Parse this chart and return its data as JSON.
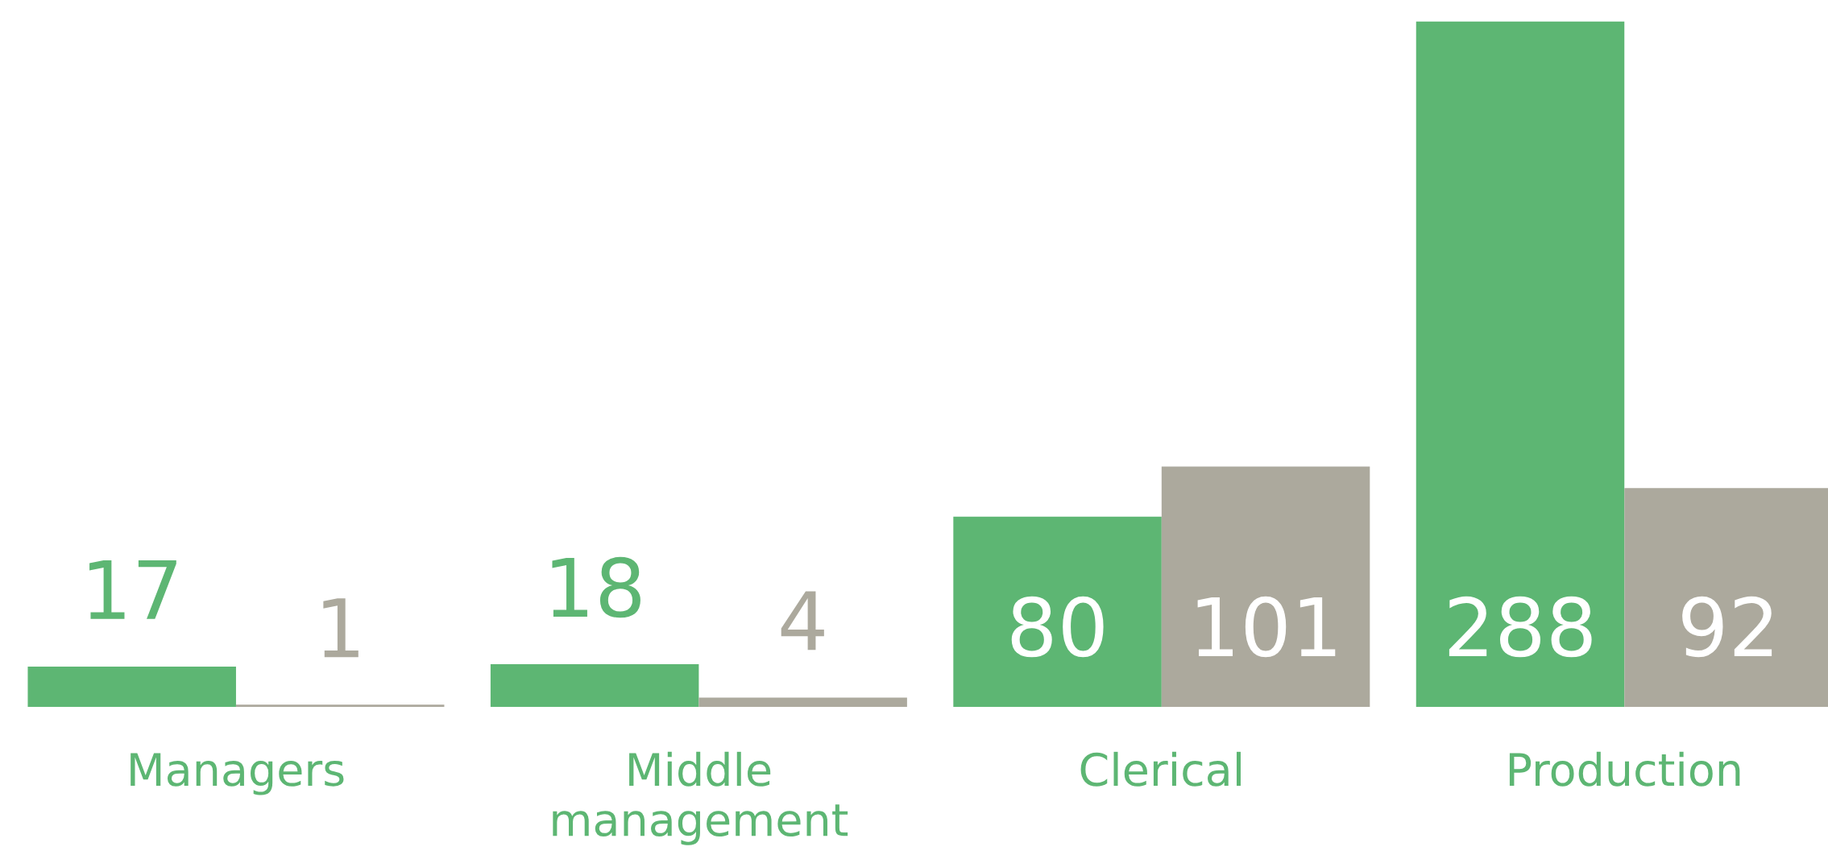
{
  "chart_data": {
    "type": "bar",
    "categories": [
      "Managers",
      "Middle\nmanagement",
      "Clerical",
      "Production"
    ],
    "series": [
      {
        "color": "#5db673",
        "values": [
          17,
          18,
          80,
          288
        ]
      },
      {
        "color": "#aca99d",
        "values": [
          1,
          4,
          101,
          92
        ]
      }
    ],
    "data_labels": true
  }
}
